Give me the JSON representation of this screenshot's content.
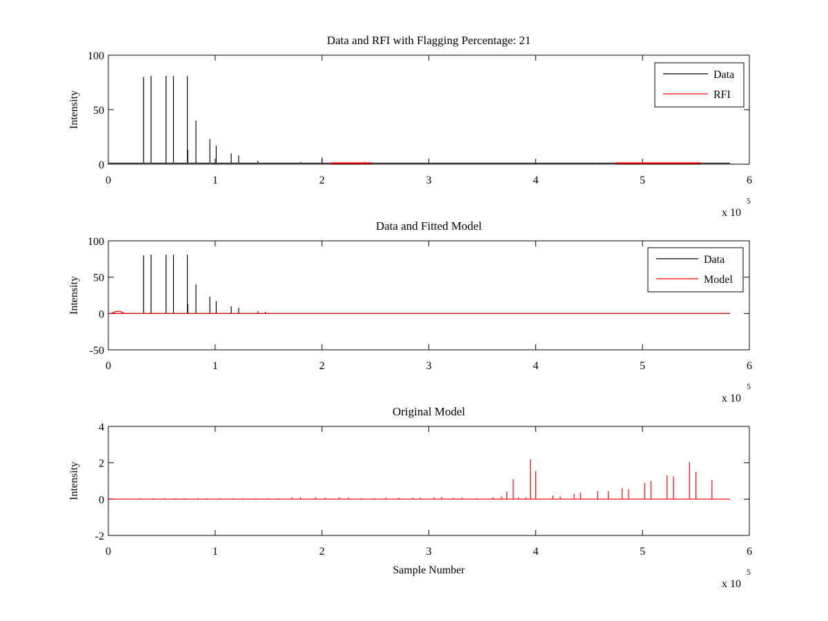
{
  "figure": {
    "background": "#ffffff",
    "colors": {
      "data": "#000000",
      "rfi": "#ff0000",
      "model": "#ff0000",
      "axes": "#000000"
    }
  },
  "chart_data": [
    {
      "type": "line",
      "title": "Data and RFI with Flagging Percentage: 21",
      "xlabel": "",
      "ylabel": "Intensity",
      "xlim": [
        0,
        600000
      ],
      "ylim": [
        0,
        100
      ],
      "xticks": [
        0,
        1,
        2,
        3,
        4,
        5,
        6
      ],
      "yticks": [
        0,
        50,
        100
      ],
      "x_multiplier_label": [
        "x 10",
        "5"
      ],
      "grid": false,
      "legend": {
        "placement": "top-right",
        "entries": [
          "Data",
          "RFI"
        ]
      },
      "series": [
        {
          "name": "Data",
          "color": "#000000",
          "baseline": 1,
          "peaks": [
            [
              33000,
              80
            ],
            [
              40000,
              81
            ],
            [
              54000,
              81
            ],
            [
              61000,
              81
            ],
            [
              74000,
              81
            ],
            [
              74400,
              13
            ],
            [
              82000,
              40
            ],
            [
              95000,
              23
            ],
            [
              101000,
              17
            ],
            [
              115000,
              10
            ],
            [
              122000,
              8
            ],
            [
              140000,
              3
            ],
            [
              180000,
              2
            ],
            [
              200000,
              6
            ],
            [
              240000,
              2
            ],
            [
              300000,
              1.5
            ],
            [
              340000,
              1.5
            ],
            [
              400000,
              1.5
            ],
            [
              460000,
              1.5
            ],
            [
              520000,
              1.5
            ]
          ]
        },
        {
          "name": "RFI",
          "color": "#ff0000",
          "segments": [
            [
              208000,
              247000,
              1
            ],
            [
              475000,
              555000,
              1
            ]
          ]
        }
      ]
    },
    {
      "type": "line",
      "title": "Data and Fitted Model",
      "xlabel": "",
      "ylabel": "Intensity",
      "xlim": [
        0,
        600000
      ],
      "ylim": [
        -50,
        100
      ],
      "xticks": [
        0,
        1,
        2,
        3,
        4,
        5,
        6
      ],
      "yticks": [
        -50,
        0,
        50,
        100
      ],
      "x_multiplier_label": [
        "x 10",
        "5"
      ],
      "grid": false,
      "legend": {
        "placement": "top-right",
        "entries": [
          "Data",
          "Model"
        ]
      },
      "series": [
        {
          "name": "Data",
          "color": "#000000",
          "baseline": 0,
          "peaks": [
            [
              33000,
              80
            ],
            [
              40000,
              81
            ],
            [
              54000,
              81
            ],
            [
              61000,
              81
            ],
            [
              74000,
              81
            ],
            [
              74400,
              13
            ],
            [
              82000,
              40
            ],
            [
              95000,
              23
            ],
            [
              101000,
              17
            ],
            [
              115000,
              10
            ],
            [
              122000,
              8
            ],
            [
              140000,
              3
            ],
            [
              147000,
              2
            ]
          ]
        },
        {
          "name": "Model",
          "color": "#ff0000",
          "baseline": 0,
          "bump": [
            9000,
            3
          ]
        }
      ]
    },
    {
      "type": "line",
      "title": "Original Model",
      "xlabel": "Sample Number",
      "ylabel": "Intensity",
      "xlim": [
        0,
        600000
      ],
      "ylim": [
        -2,
        4
      ],
      "xticks": [
        0,
        1,
        2,
        3,
        4,
        5,
        6
      ],
      "yticks": [
        -2,
        0,
        2,
        4
      ],
      "x_multiplier_label": [
        "x 10",
        "5"
      ],
      "grid": false,
      "series": [
        {
          "name": "Model",
          "color": "#ff0000",
          "baseline": 0,
          "peaks": [
            [
              2000,
              0.05
            ],
            [
              30000,
              0.05
            ],
            [
              42000,
              0.05
            ],
            [
              53000,
              0.05
            ],
            [
              63000,
              0.05
            ],
            [
              71000,
              0.05
            ],
            [
              84000,
              0.05
            ],
            [
              92000,
              0.05
            ],
            [
              104000,
              0.05
            ],
            [
              117000,
              0.05
            ],
            [
              126000,
              0.05
            ],
            [
              138000,
              0.05
            ],
            [
              150000,
              0.05
            ],
            [
              159000,
              0.05
            ],
            [
              172000,
              0.1
            ],
            [
              180000,
              0.1
            ],
            [
              194000,
              0.1
            ],
            [
              203000,
              0.08
            ],
            [
              216000,
              0.1
            ],
            [
              225000,
              0.08
            ],
            [
              237000,
              0.06
            ],
            [
              249000,
              0.06
            ],
            [
              260000,
              0.08
            ],
            [
              272000,
              0.08
            ],
            [
              285000,
              0.08
            ],
            [
              292000,
              0.08
            ],
            [
              305000,
              0.1
            ],
            [
              312000,
              0.12
            ],
            [
              323000,
              0.08
            ],
            [
              331000,
              0.08
            ],
            [
              345000,
              0.05
            ],
            [
              360000,
              0.1
            ],
            [
              368000,
              0.15
            ],
            [
              373000,
              0.4
            ],
            [
              379000,
              1.1
            ],
            [
              384000,
              0.1
            ],
            [
              391000,
              0.1
            ],
            [
              395000,
              2.2
            ],
            [
              400000,
              1.55
            ],
            [
              416000,
              0.2
            ],
            [
              423000,
              0.15
            ],
            [
              436000,
              0.3
            ],
            [
              442000,
              0.35
            ],
            [
              458000,
              0.45
            ],
            [
              468000,
              0.45
            ],
            [
              481000,
              0.6
            ],
            [
              487000,
              0.55
            ],
            [
              502000,
              0.9
            ],
            [
              508000,
              1.0
            ],
            [
              523000,
              1.3
            ],
            [
              529000,
              1.25
            ],
            [
              544000,
              2.05
            ],
            [
              550000,
              1.5
            ],
            [
              565000,
              1.05
            ]
          ]
        }
      ]
    }
  ]
}
